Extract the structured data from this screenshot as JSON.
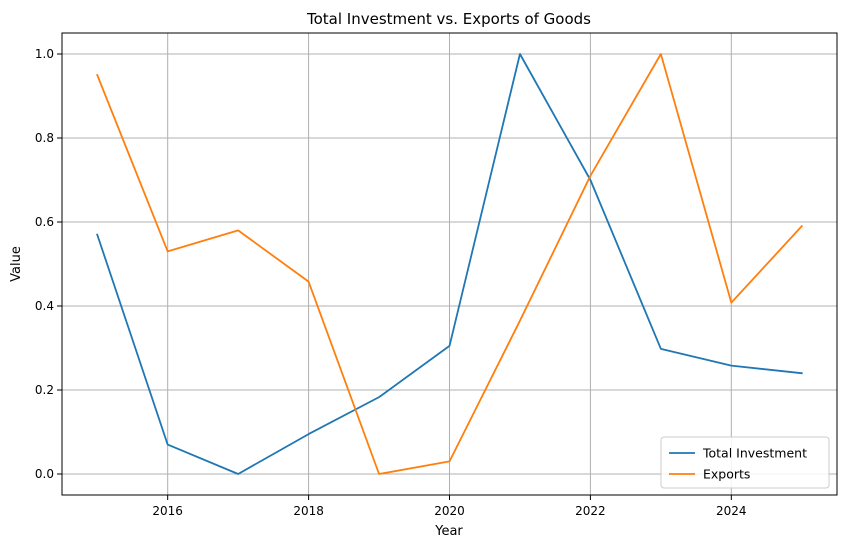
{
  "chart_data": {
    "type": "line",
    "title": "Total Investment vs. Exports of Goods",
    "xlabel": "Year",
    "ylabel": "Value",
    "x": [
      2015,
      2016,
      2017,
      2018,
      2019,
      2020,
      2021,
      2022,
      2023,
      2024,
      2025
    ],
    "xlim": [
      2014.5,
      2025.5
    ],
    "ylim": [
      -0.05,
      1.05
    ],
    "xticks": [
      2016,
      2018,
      2020,
      2022,
      2024
    ],
    "yticks": [
      0.0,
      0.2,
      0.4,
      0.6,
      0.8,
      1.0
    ],
    "xtick_labels": [
      "2016",
      "2018",
      "2020",
      "2022",
      "2024"
    ],
    "ytick_labels": [
      "0.0",
      "0.2",
      "0.4",
      "0.6",
      "0.8",
      "1.0"
    ],
    "grid": true,
    "legend_position": "bottom-right",
    "series": [
      {
        "name": "Total Investment",
        "color": "#1f77b4",
        "values": [
          0.57,
          0.07,
          0.0,
          0.095,
          0.183,
          0.305,
          1.0,
          0.7,
          0.298,
          0.258,
          0.24
        ]
      },
      {
        "name": "Exports",
        "color": "#ff7f0e",
        "values": [
          0.95,
          0.53,
          0.58,
          0.458,
          0.0,
          0.03,
          0.365,
          0.71,
          1.0,
          0.408,
          0.59
        ]
      }
    ]
  }
}
